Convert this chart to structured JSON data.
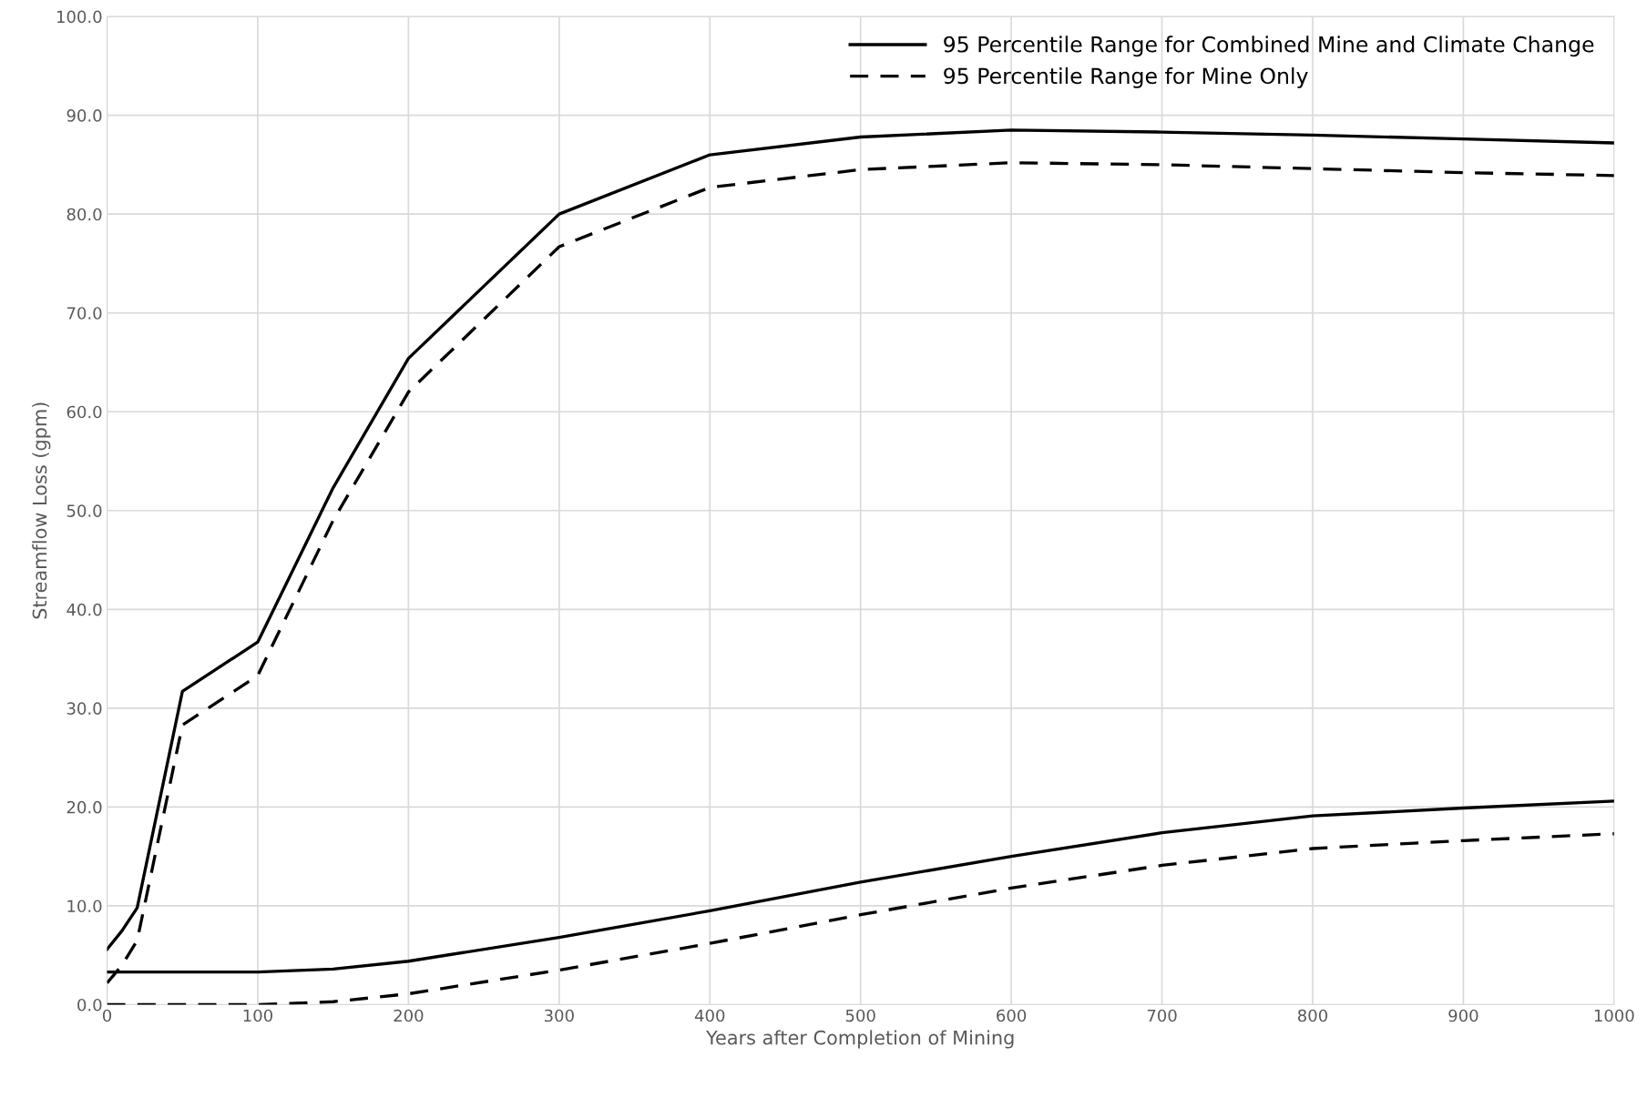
{
  "chart_data": {
    "type": "line",
    "xlabel": "Years after Completion of Mining",
    "ylabel": "Streamflow Loss (gpm)",
    "x": [
      0,
      10,
      20,
      50,
      100,
      150,
      200,
      300,
      400,
      500,
      600,
      700,
      800,
      900,
      1000
    ],
    "series": [
      {
        "name": "95 Percentile Range for Combined Mine and Climate Change",
        "color": "#000000",
        "line_style": "solid",
        "values": [
          5.6,
          7.5,
          9.8,
          31.7,
          36.7,
          52.3,
          65.4,
          80.0,
          86.0,
          87.8,
          88.5,
          88.3,
          88.0,
          87.6,
          87.2
        ]
      },
      {
        "name": "95 Percentile Range for Mine Only",
        "color": "#000000",
        "line_style": "dashed",
        "values": [
          2.2,
          4.0,
          6.5,
          28.3,
          33.3,
          49.0,
          62.0,
          76.7,
          82.7,
          84.5,
          85.2,
          85.0,
          84.6,
          84.2,
          83.9
        ]
      },
      {
        "color": "#000000",
        "line_style": "solid",
        "values": [
          3.3,
          3.3,
          3.3,
          3.3,
          3.3,
          3.6,
          4.4,
          6.8,
          9.5,
          12.4,
          15.0,
          17.4,
          19.1,
          19.9,
          20.6
        ]
      },
      {
        "color": "#000000",
        "line_style": "dashed",
        "values": [
          0.0,
          0.0,
          0.0,
          0.0,
          0.0,
          0.3,
          1.1,
          3.5,
          6.2,
          9.1,
          11.8,
          14.1,
          15.8,
          16.6,
          17.3
        ]
      }
    ],
    "xlim": [
      0,
      1000
    ],
    "xticks": [
      0,
      100,
      200,
      300,
      400,
      500,
      600,
      700,
      800,
      900,
      1000
    ],
    "ylim": [
      0,
      100
    ],
    "yticks": [
      {
        "value": 0,
        "label": "0.0"
      },
      {
        "value": 10,
        "label": "10.0"
      },
      {
        "value": 20,
        "label": "20.0"
      },
      {
        "value": 30,
        "label": "30.0"
      },
      {
        "value": 40,
        "label": "40.0"
      },
      {
        "value": 50,
        "label": "50.0"
      },
      {
        "value": 60,
        "label": "60.0"
      },
      {
        "value": 70,
        "label": "70.0"
      },
      {
        "value": 80,
        "label": "80.0"
      },
      {
        "value": 90,
        "label": "90.0"
      },
      {
        "value": 100,
        "label": "100.0"
      }
    ],
    "grid": true,
    "legend": "top right",
    "marker": "none"
  }
}
